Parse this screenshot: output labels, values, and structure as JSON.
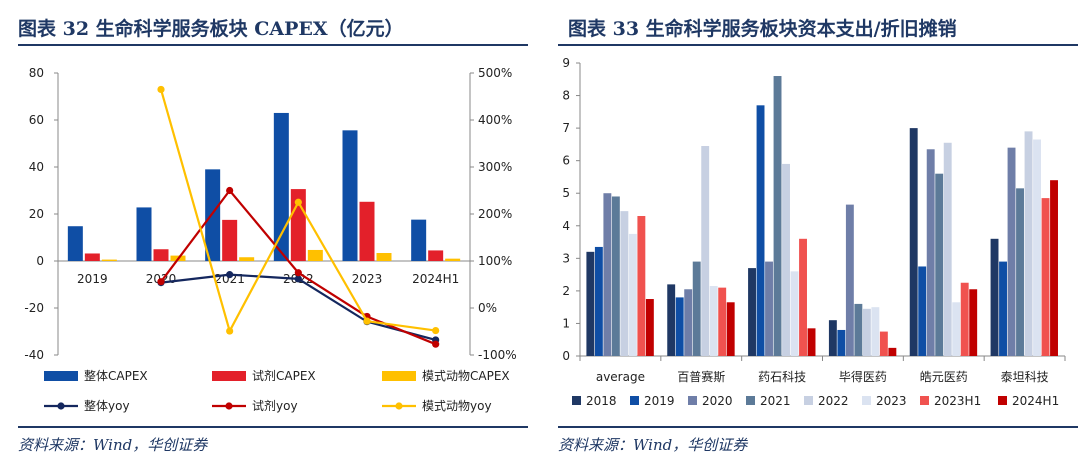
{
  "left": {
    "title": "图表 32   生命科学服务板块 CAPEX（亿元）",
    "source": "资料来源：Wind，华创证券",
    "chart_data": {
      "type": "bar",
      "categories": [
        "2019",
        "2020",
        "2021",
        "2022",
        "2023",
        "2024H1"
      ],
      "ylim": [
        -40,
        80
      ],
      "y2lim": [
        -100,
        500
      ],
      "y_ticks": [
        "-40",
        "-20",
        "0",
        "20",
        "40",
        "60",
        "80"
      ],
      "y2_ticks": [
        "-100%",
        "0%",
        "100%",
        "200%",
        "300%",
        "400%",
        "500%"
      ],
      "bar_series": [
        {
          "name": "整体CAPEX",
          "color": "#0f4ea5",
          "values": [
            14.8,
            22.8,
            39.0,
            63.0,
            55.6,
            17.6
          ]
        },
        {
          "name": "试剂CAPEX",
          "color": "#e3202a",
          "values": [
            3.2,
            5.0,
            17.5,
            30.6,
            25.2,
            4.5
          ]
        },
        {
          "name": "模式动物CAPEX",
          "color": "#ffc000",
          "values": [
            0.6,
            2.3,
            1.6,
            4.7,
            3.4,
            1.0
          ]
        }
      ],
      "line_series": [
        {
          "name": "整体yoy",
          "color": "#14275e",
          "values": [
            null,
            54,
            71,
            62,
            -29,
            -68
          ]
        },
        {
          "name": "试剂yoy",
          "color": "#c00000",
          "values": [
            null,
            56,
            250,
            75,
            -18,
            -77
          ]
        },
        {
          "name": "模式动物yoy",
          "color": "#ffc000",
          "values": [
            null,
            465,
            -49,
            225,
            -28,
            -48
          ]
        }
      ],
      "legend_position": "bottom"
    }
  },
  "right": {
    "title": "图表 33   生命科学服务板块资本支出/折旧摊销",
    "source": "资料来源：Wind，华创证券",
    "chart_data": {
      "type": "bar",
      "categories": [
        "average",
        "百普赛斯",
        "药石科技",
        "毕得医药",
        "皓元医药",
        "泰坦科技"
      ],
      "ylim": [
        0,
        9
      ],
      "y_ticks": [
        "0",
        "1",
        "2",
        "3",
        "4",
        "5",
        "6",
        "7",
        "8",
        "9"
      ],
      "series": [
        {
          "name": "2018",
          "color": "#1f3864",
          "values": [
            3.2,
            2.2,
            2.7,
            1.1,
            7.0,
            3.6
          ]
        },
        {
          "name": "2019",
          "color": "#0f4ea5",
          "values": [
            3.35,
            1.8,
            7.7,
            0.8,
            2.75,
            2.9
          ]
        },
        {
          "name": "2020",
          "color": "#6f7ea8",
          "values": [
            5.0,
            2.05,
            2.9,
            4.65,
            6.35,
            6.4
          ]
        },
        {
          "name": "2021",
          "color": "#5c7a98",
          "values": [
            4.9,
            2.9,
            8.6,
            1.6,
            5.6,
            5.15
          ]
        },
        {
          "name": "2022",
          "color": "#c7d0e2",
          "values": [
            4.45,
            6.45,
            5.9,
            1.45,
            6.55,
            6.9
          ]
        },
        {
          "name": "2023",
          "color": "#dbe3f1",
          "values": [
            3.75,
            2.15,
            2.6,
            1.5,
            1.65,
            6.65
          ]
        },
        {
          "name": "2023H1",
          "color": "#f0524f",
          "values": [
            4.3,
            2.1,
            3.6,
            0.75,
            2.25,
            4.85
          ]
        },
        {
          "name": "2024H1",
          "color": "#c00000",
          "values": [
            1.75,
            1.65,
            0.85,
            0.25,
            2.05,
            5.4
          ]
        }
      ],
      "legend_position": "bottom"
    }
  }
}
